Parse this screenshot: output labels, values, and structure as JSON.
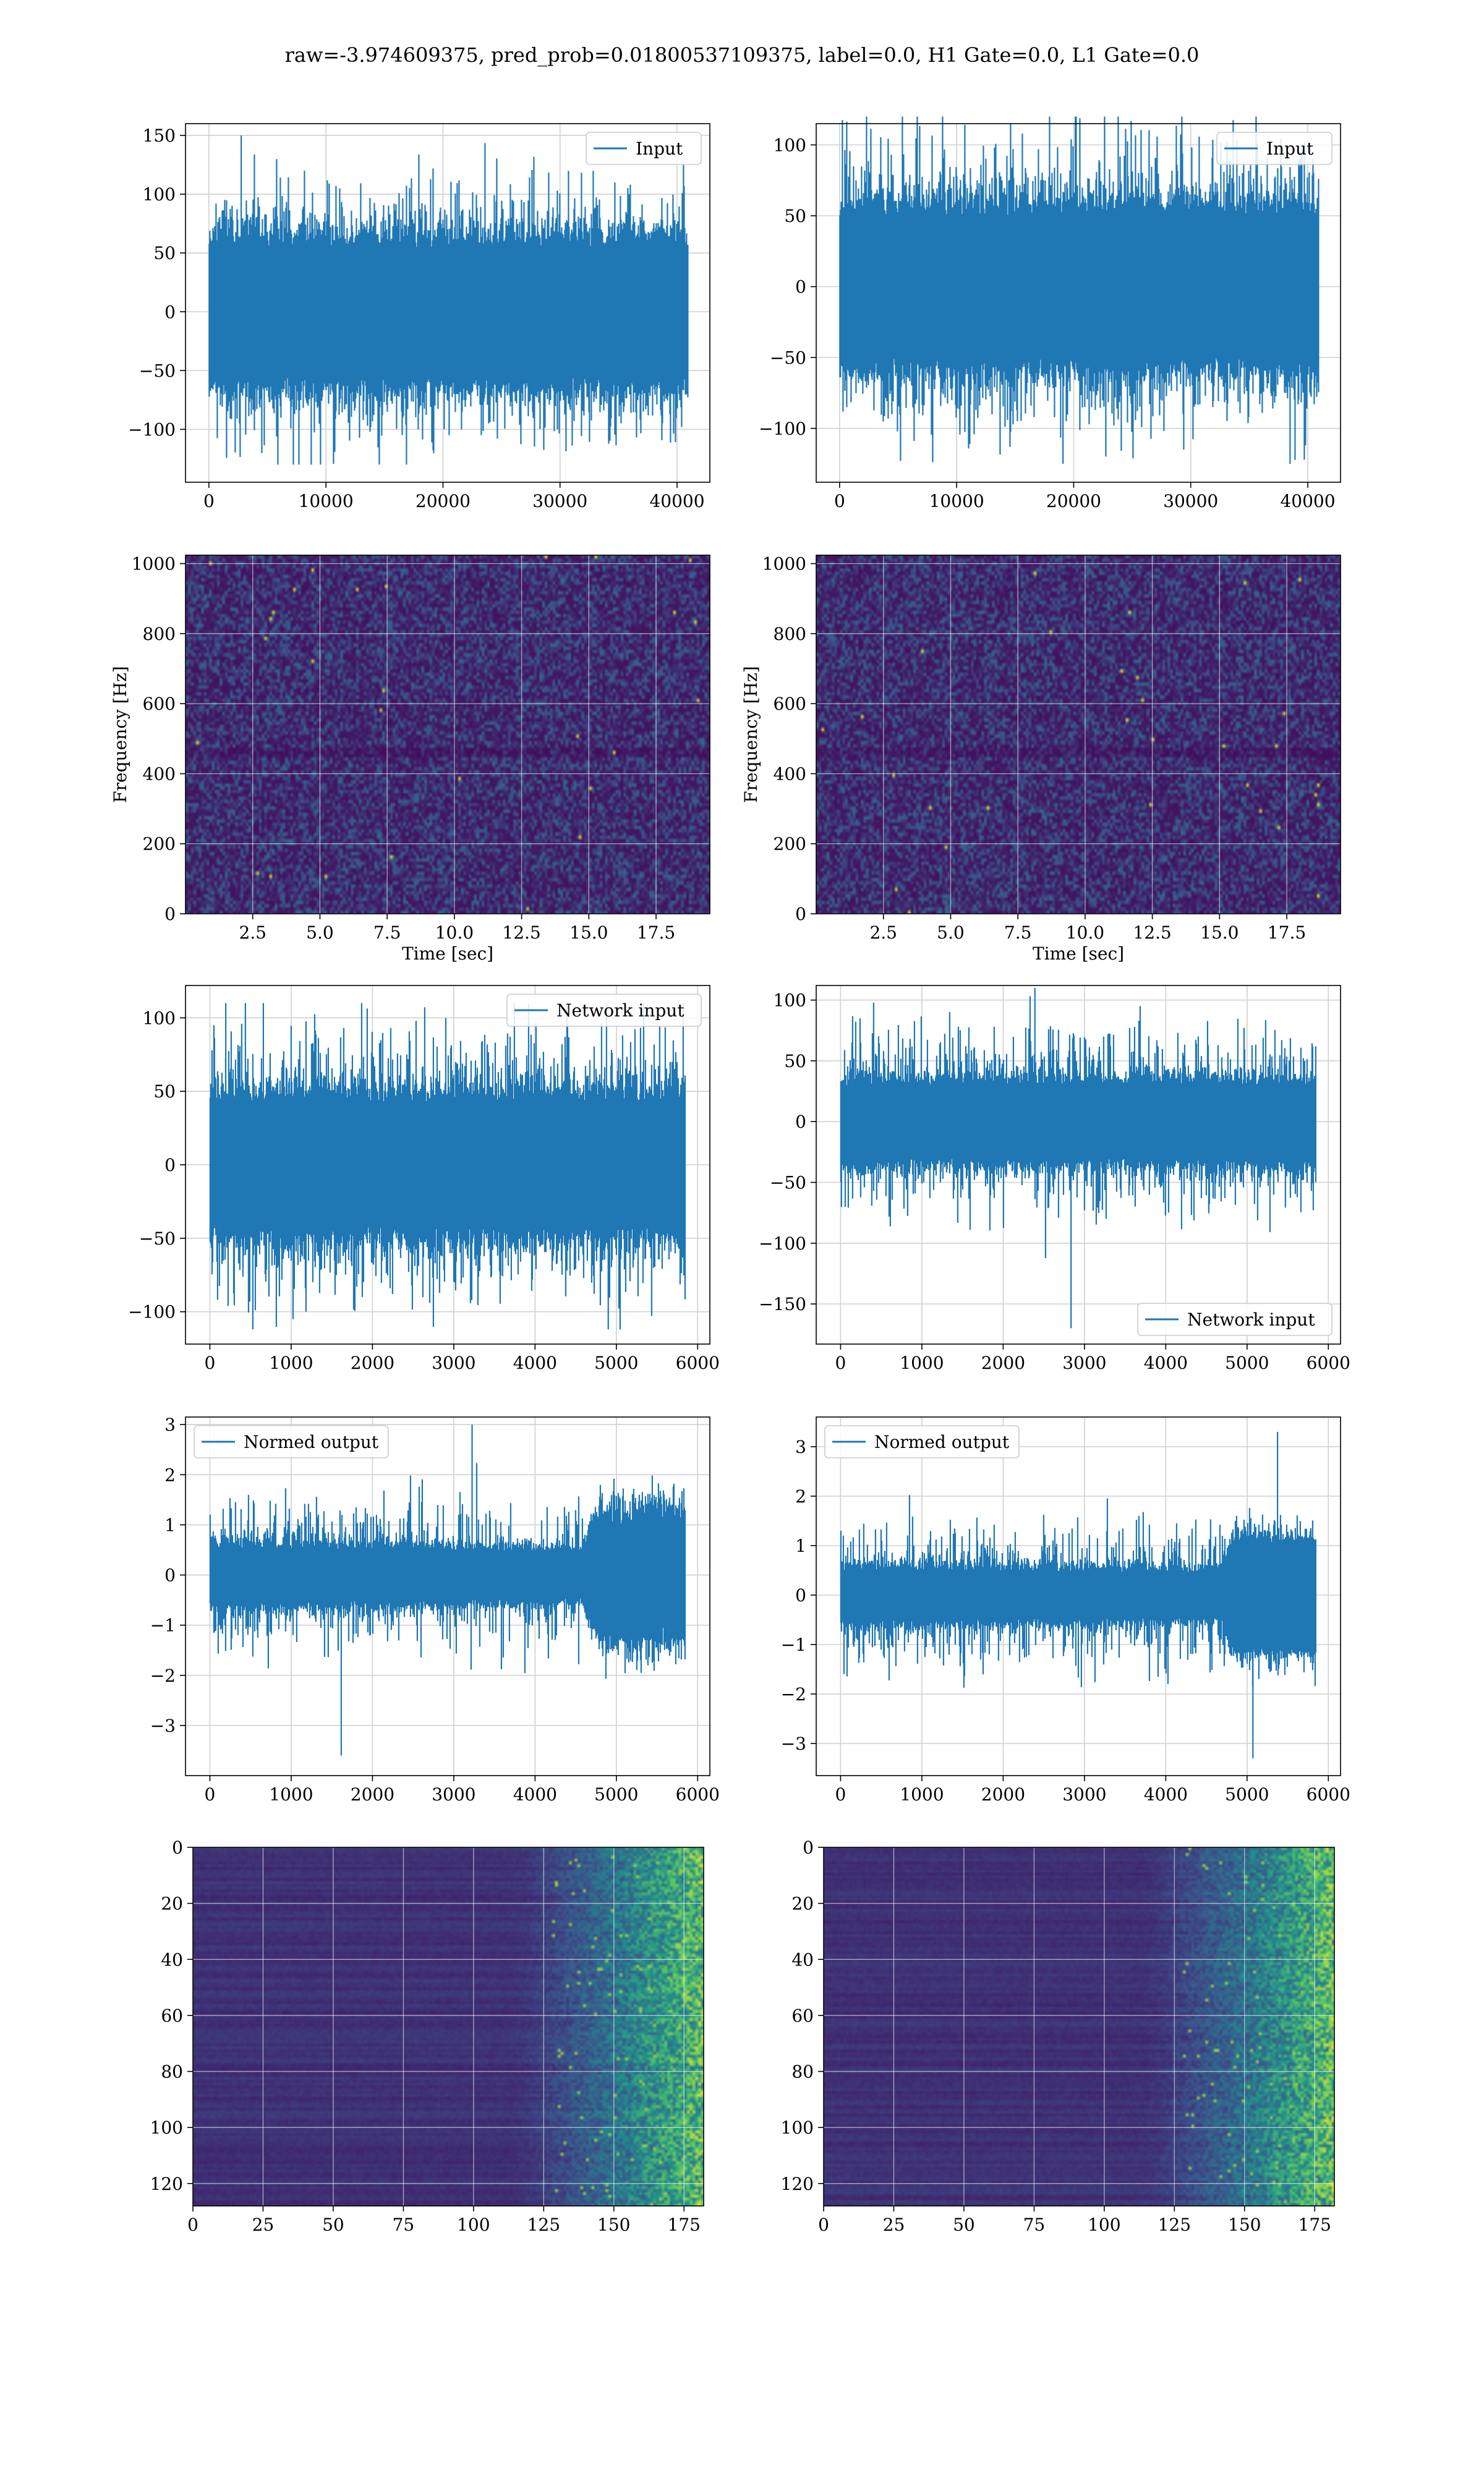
{
  "figure": {
    "suptitle": "raw=-3.974609375, pred_prob=0.01800537109375, label=0.0, H1 Gate=0.0, L1 Gate=0.0",
    "colors": {
      "series": "#1f77b4",
      "grid": "#d0d0d0",
      "spine": "#000000",
      "viridis_low": "#440154",
      "viridis_mid": "#21918c",
      "viridis_high": "#fde725"
    }
  },
  "chart_data": [
    {
      "id": "h1-input",
      "type": "line",
      "legend": "Input",
      "legend_loc": "upper-right",
      "xlim": [
        -2000,
        42800
      ],
      "ylim": [
        -145,
        160
      ],
      "xticks": [
        0,
        10000,
        20000,
        30000,
        40000
      ],
      "xticklabels": [
        "0",
        "10000",
        "20000",
        "30000",
        "40000"
      ],
      "yticks": [
        -100,
        -50,
        0,
        50,
        100,
        150
      ],
      "yticklabels": [
        "−100",
        "−50",
        "0",
        "50",
        "100",
        "150"
      ],
      "xlabel": "",
      "ylabel": "",
      "signal": {
        "n": 40960,
        "x_end": 40960,
        "envelope": [
          [
            0,
            55
          ],
          [
            1,
            55
          ]
        ],
        "typical_peak": 85,
        "max_peak": 150,
        "min_peak": -130
      }
    },
    {
      "id": "l1-input",
      "type": "line",
      "legend": "Input",
      "legend_loc": "upper-right",
      "xlim": [
        -2000,
        42800
      ],
      "ylim": [
        -138,
        115
      ],
      "xticks": [
        0,
        10000,
        20000,
        30000,
        40000
      ],
      "xticklabels": [
        "0",
        "10000",
        "20000",
        "30000",
        "40000"
      ],
      "yticks": [
        -100,
        -50,
        0,
        50,
        100
      ],
      "yticklabels": [
        "−100",
        "−50",
        "0",
        "50",
        "100"
      ],
      "xlabel": "",
      "ylabel": "",
      "signal": {
        "n": 40960,
        "x_end": 40960,
        "envelope": [
          [
            0,
            50
          ],
          [
            1,
            50
          ]
        ],
        "typical_peak": 80,
        "max_peak": 120,
        "min_peak": -125
      }
    },
    {
      "id": "h1-spectrogram",
      "type": "heatmap",
      "variant": "spectrogram",
      "xlim": [
        0,
        19.5
      ],
      "ylim": [
        0,
        1024
      ],
      "xticks": [
        2.5,
        5.0,
        7.5,
        10.0,
        12.5,
        15.0,
        17.5
      ],
      "xticklabels": [
        "2.5",
        "5.0",
        "7.5",
        "10.0",
        "12.5",
        "15.0",
        "17.5"
      ],
      "yticks": [
        0,
        200,
        400,
        600,
        800,
        1000
      ],
      "yticklabels": [
        "0",
        "200",
        "400",
        "600",
        "800",
        "1000"
      ],
      "xlabel": "Time [sec]",
      "ylabel": "Frequency [Hz]"
    },
    {
      "id": "l1-spectrogram",
      "type": "heatmap",
      "variant": "spectrogram",
      "xlim": [
        0,
        19.5
      ],
      "ylim": [
        0,
        1024
      ],
      "xticks": [
        2.5,
        5.0,
        7.5,
        10.0,
        12.5,
        15.0,
        17.5
      ],
      "xticklabels": [
        "2.5",
        "5.0",
        "7.5",
        "10.0",
        "12.5",
        "15.0",
        "17.5"
      ],
      "yticks": [
        0,
        200,
        400,
        600,
        800,
        1000
      ],
      "yticklabels": [
        "0",
        "200",
        "400",
        "600",
        "800",
        "1000"
      ],
      "xlabel": "Time [sec]",
      "ylabel": "Frequency [Hz]"
    },
    {
      "id": "h1-network-input",
      "type": "line",
      "legend": "Network input",
      "legend_loc": "upper-right",
      "xlim": [
        -300,
        6150
      ],
      "ylim": [
        -122,
        122
      ],
      "xticks": [
        0,
        1000,
        2000,
        3000,
        4000,
        5000,
        6000
      ],
      "xticklabels": [
        "0",
        "1000",
        "2000",
        "3000",
        "4000",
        "5000",
        "6000"
      ],
      "yticks": [
        -100,
        -50,
        0,
        50,
        100
      ],
      "yticklabels": [
        "−100",
        "−50",
        "0",
        "50",
        "100"
      ],
      "xlabel": "",
      "ylabel": "",
      "signal": {
        "n": 5850,
        "x_end": 5850,
        "envelope": [
          [
            0,
            42
          ],
          [
            1,
            42
          ]
        ],
        "typical_peak": 70,
        "max_peak": 110,
        "min_peak": -112
      }
    },
    {
      "id": "l1-network-input",
      "type": "line",
      "legend": "Network input",
      "legend_loc": "lower-right",
      "xlim": [
        -300,
        6150
      ],
      "ylim": [
        -183,
        112
      ],
      "xticks": [
        0,
        1000,
        2000,
        3000,
        4000,
        5000,
        6000
      ],
      "xticklabels": [
        "0",
        "1000",
        "2000",
        "3000",
        "4000",
        "5000",
        "6000"
      ],
      "yticks": [
        -150,
        -100,
        -50,
        0,
        50,
        100
      ],
      "yticklabels": [
        "−150",
        "−100",
        "−50",
        "0",
        "50",
        "100"
      ],
      "xlabel": "",
      "ylabel": "",
      "signal": {
        "n": 5850,
        "x_end": 5850,
        "envelope": [
          [
            0,
            30
          ],
          [
            1,
            30
          ]
        ],
        "typical_peak": 55,
        "max_peak": 110,
        "min_peak": -170
      }
    },
    {
      "id": "h1-normed-output",
      "type": "line",
      "legend": "Normed output",
      "legend_loc": "upper-left",
      "xlim": [
        -300,
        6150
      ],
      "ylim": [
        -4.0,
        3.15
      ],
      "xticks": [
        0,
        1000,
        2000,
        3000,
        4000,
        5000,
        6000
      ],
      "xticklabels": [
        "0",
        "1000",
        "2000",
        "3000",
        "4000",
        "5000",
        "6000"
      ],
      "yticks": [
        -3,
        -2,
        -1,
        0,
        1,
        2,
        3
      ],
      "yticklabels": [
        "−3",
        "−2",
        "−1",
        "0",
        "1",
        "2",
        "3"
      ],
      "xlabel": "",
      "ylabel": "",
      "signal": {
        "n": 5850,
        "x_end": 5850,
        "envelope": [
          [
            0,
            0.55
          ],
          [
            0.78,
            0.45
          ],
          [
            0.82,
            1.2
          ],
          [
            1,
            1.25
          ]
        ],
        "typical_peak": 1.0,
        "max_peak": 3.0,
        "min_peak": -3.6
      }
    },
    {
      "id": "l1-normed-output",
      "type": "line",
      "legend": "Normed output",
      "legend_loc": "upper-left",
      "xlim": [
        -300,
        6150
      ],
      "ylim": [
        -3.65,
        3.6
      ],
      "xticks": [
        0,
        1000,
        2000,
        3000,
        4000,
        5000,
        6000
      ],
      "xticklabels": [
        "0",
        "1000",
        "2000",
        "3000",
        "4000",
        "5000",
        "6000"
      ],
      "yticks": [
        -3,
        -2,
        -1,
        0,
        1,
        2,
        3
      ],
      "yticklabels": [
        "−3",
        "−2",
        "−1",
        "0",
        "1",
        "2",
        "3"
      ],
      "xlabel": "",
      "ylabel": "",
      "signal": {
        "n": 5850,
        "x_end": 5850,
        "envelope": [
          [
            0,
            0.5
          ],
          [
            0.8,
            0.45
          ],
          [
            0.83,
            1.1
          ],
          [
            1,
            1.1
          ]
        ],
        "typical_peak": 1.0,
        "max_peak": 3.3,
        "min_peak": -3.3
      }
    },
    {
      "id": "h1-feature-map",
      "type": "heatmap",
      "variant": "feature-map",
      "xlim": [
        0,
        182
      ],
      "ylim": [
        128,
        0
      ],
      "xticks": [
        0,
        25,
        50,
        75,
        100,
        125,
        150,
        175
      ],
      "xticklabels": [
        "0",
        "25",
        "50",
        "75",
        "100",
        "125",
        "150",
        "175"
      ],
      "yticks": [
        0,
        20,
        40,
        60,
        80,
        100,
        120
      ],
      "yticklabels": [
        "0",
        "20",
        "40",
        "60",
        "80",
        "100",
        "120"
      ],
      "xlabel": "",
      "ylabel": ""
    },
    {
      "id": "l1-feature-map",
      "type": "heatmap",
      "variant": "feature-map",
      "xlim": [
        0,
        182
      ],
      "ylim": [
        128,
        0
      ],
      "xticks": [
        0,
        25,
        50,
        75,
        100,
        125,
        150,
        175
      ],
      "xticklabels": [
        "0",
        "25",
        "50",
        "75",
        "100",
        "125",
        "150",
        "175"
      ],
      "yticks": [
        0,
        20,
        40,
        60,
        80,
        100,
        120
      ],
      "yticklabels": [
        "0",
        "20",
        "40",
        "60",
        "80",
        "100",
        "120"
      ],
      "xlabel": "",
      "ylabel": ""
    }
  ]
}
